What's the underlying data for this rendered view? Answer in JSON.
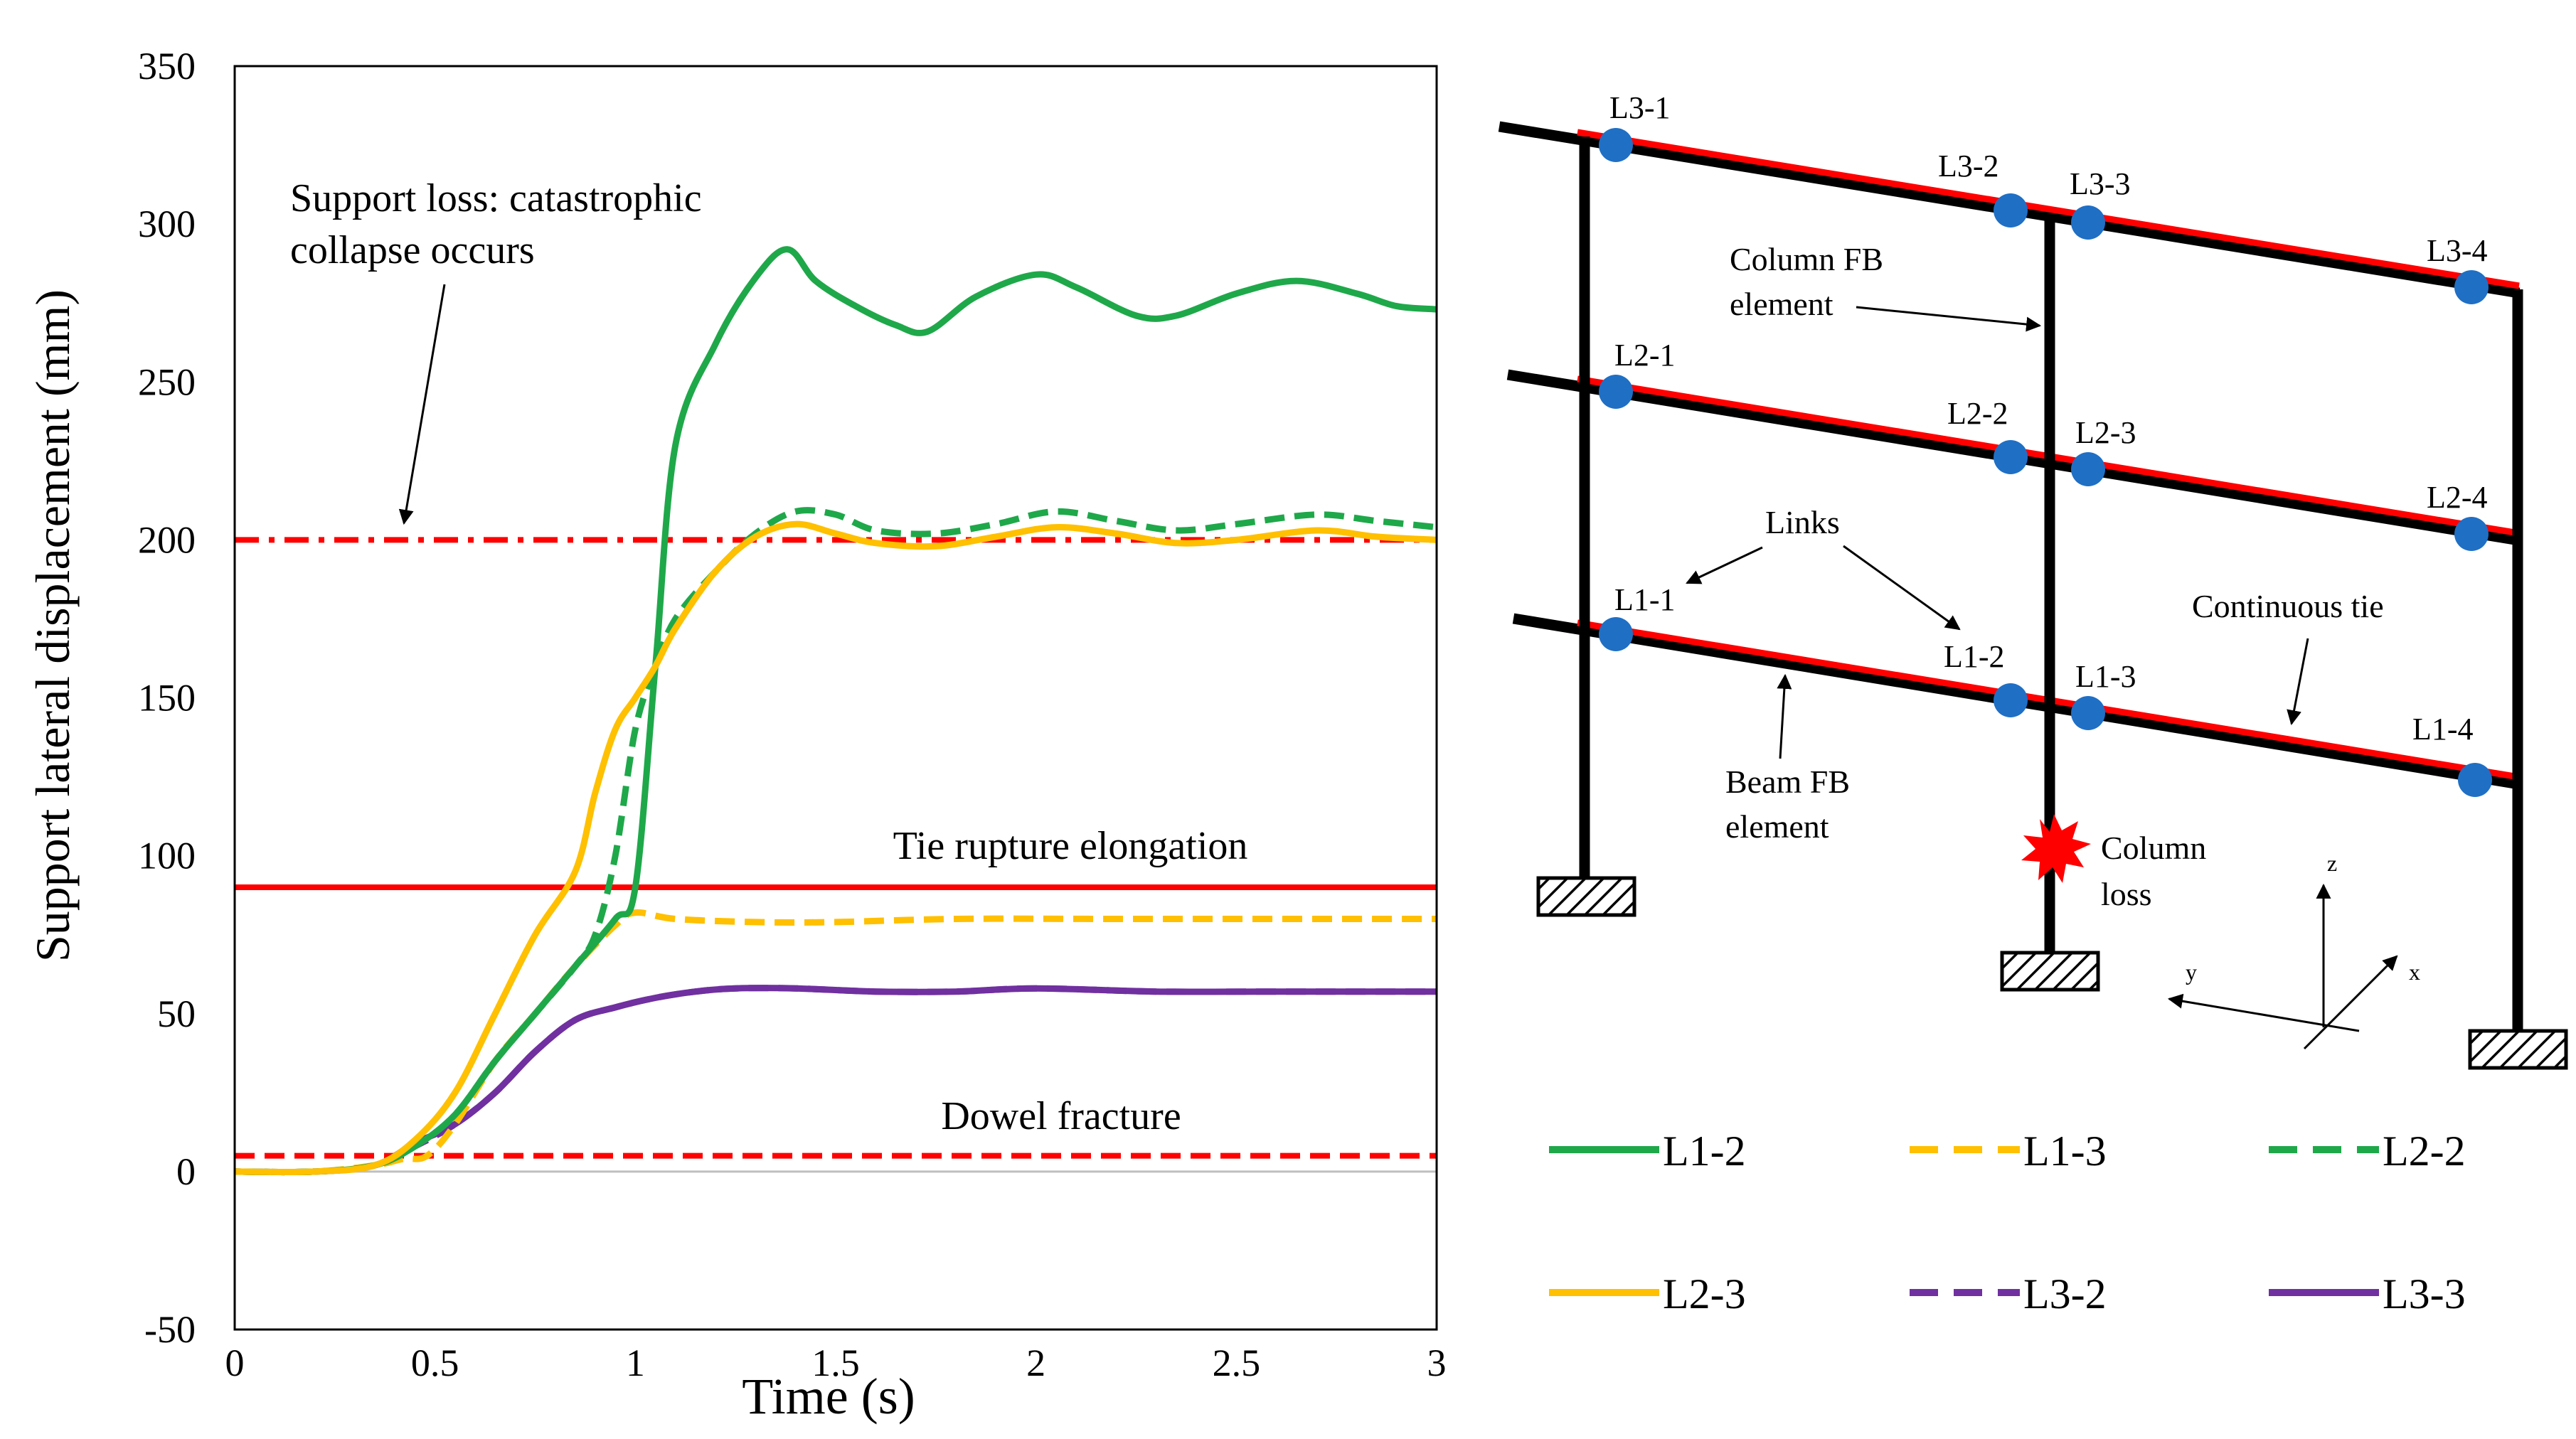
{
  "colors": {
    "green": "#1FA84A",
    "yellow": "#FFC000",
    "purple": "#7030A0",
    "red": "#FF0000",
    "blue": "#1F6FC5",
    "black": "#000000"
  },
  "chart_data": {
    "type": "line",
    "xlabel": "Time (s)",
    "ylabel": "Support lateral displacement (mm)",
    "xlim": [
      0,
      3
    ],
    "ylim": [
      -50,
      350
    ],
    "xticks": [
      0,
      0.5,
      1,
      1.5,
      2,
      2.5,
      3
    ],
    "xtick_labels": [
      "0",
      "0.5",
      "1",
      "1.5",
      "2",
      "2.5",
      "3"
    ],
    "yticks": [
      -50,
      0,
      50,
      100,
      150,
      200,
      250,
      300,
      350
    ],
    "ytick_labels": [
      "-50",
      "0",
      "50",
      "100",
      "150",
      "200",
      "250",
      "300",
      "350"
    ],
    "reference_lines": [
      {
        "name": "support-loss",
        "label": "Support loss: catastrophic collapse occurs",
        "y": 200,
        "style": "dashdot",
        "color": "#FF0000"
      },
      {
        "name": "tie-rupture",
        "label": "Tie rupture elongation",
        "y": 90,
        "style": "solid",
        "color": "#FF0000"
      },
      {
        "name": "dowel-fracture",
        "label": "Dowel fracture",
        "y": 5,
        "style": "dashed",
        "color": "#FF0000"
      }
    ],
    "annotations": {
      "support_loss_line1": "Support loss: catastrophic",
      "support_loss_line2": "collapse occurs",
      "tie_rupture": "Tie rupture elongation",
      "dowel": "Dowel fracture"
    },
    "series": [
      {
        "name": "L1-2",
        "style": "solid",
        "color": "#1FA84A",
        "x": [
          0,
          0.2,
          0.35,
          0.45,
          0.55,
          0.65,
          0.75,
          0.85,
          0.95,
          1.0,
          1.05,
          1.1,
          1.2,
          1.3,
          1.38,
          1.45,
          1.55,
          1.65,
          1.73,
          1.85,
          2.0,
          2.1,
          2.25,
          2.35,
          2.5,
          2.65,
          2.8,
          2.9,
          3.0
        ],
        "y": [
          0,
          0,
          2,
          8,
          18,
          35,
          50,
          65,
          80,
          90,
          160,
          230,
          262,
          283,
          292,
          282,
          274,
          268,
          266,
          277,
          284,
          280,
          271,
          271,
          278,
          282,
          278,
          274,
          273
        ]
      },
      {
        "name": "L1-3",
        "style": "dashed",
        "color": "#FFC000",
        "x": [
          0,
          0.2,
          0.35,
          0.42,
          0.48,
          0.55,
          0.65,
          0.75,
          0.85,
          0.95,
          1.0,
          1.1,
          1.3,
          1.5,
          1.8,
          2.2,
          2.6,
          3.0
        ],
        "y": [
          0,
          0,
          2,
          4,
          5,
          15,
          35,
          50,
          65,
          78,
          82,
          80,
          79,
          79,
          80,
          80,
          80,
          80
        ]
      },
      {
        "name": "L2-2",
        "style": "dashed",
        "color": "#1FA84A",
        "x": [
          0,
          0.2,
          0.35,
          0.45,
          0.55,
          0.65,
          0.75,
          0.85,
          0.9,
          0.95,
          1.0,
          1.05,
          1.1,
          1.2,
          1.3,
          1.4,
          1.5,
          1.6,
          1.75,
          1.9,
          2.05,
          2.2,
          2.35,
          2.5,
          2.7,
          2.85,
          3.0
        ],
        "y": [
          0,
          0,
          2,
          8,
          18,
          35,
          50,
          65,
          75,
          100,
          140,
          160,
          175,
          190,
          202,
          209,
          208,
          203,
          202,
          205,
          209,
          206,
          203,
          205,
          208,
          206,
          204
        ]
      },
      {
        "name": "L2-3",
        "style": "solid",
        "color": "#FFC000",
        "x": [
          0,
          0.2,
          0.35,
          0.45,
          0.55,
          0.65,
          0.75,
          0.85,
          0.9,
          0.95,
          1.0,
          1.05,
          1.1,
          1.2,
          1.3,
          1.4,
          1.5,
          1.6,
          1.75,
          1.9,
          2.05,
          2.2,
          2.35,
          2.5,
          2.7,
          2.85,
          3.0
        ],
        "y": [
          0,
          0,
          2,
          10,
          25,
          50,
          75,
          95,
          120,
          140,
          150,
          160,
          172,
          190,
          201,
          205,
          202,
          199,
          198,
          201,
          204,
          202,
          199,
          200,
          203,
          201,
          200
        ]
      },
      {
        "name": "L3-2",
        "style": "dashed",
        "color": "#7030A0",
        "x": [
          0,
          0.2,
          0.35,
          0.45,
          0.55,
          0.65,
          0.75,
          0.85,
          0.95,
          1.05,
          1.15,
          1.25,
          1.4,
          1.6,
          1.8,
          2.0,
          2.3,
          2.6,
          3.0
        ],
        "y": [
          0,
          0,
          2,
          8,
          15,
          25,
          38,
          48,
          52,
          55,
          57,
          58,
          58,
          57,
          57,
          58,
          57,
          57,
          57
        ]
      },
      {
        "name": "L3-3",
        "style": "solid",
        "color": "#7030A0",
        "x": [
          0,
          0.2,
          0.35,
          0.45,
          0.55,
          0.65,
          0.75,
          0.85,
          0.95,
          1.05,
          1.15,
          1.25,
          1.4,
          1.6,
          1.8,
          2.0,
          2.3,
          2.6,
          3.0
        ],
        "y": [
          0,
          0,
          2,
          9,
          15,
          25,
          38,
          48,
          52,
          55,
          57,
          58,
          58,
          57,
          57,
          58,
          57,
          57,
          57
        ]
      }
    ]
  },
  "diagram": {
    "node_labels": [
      "L3-1",
      "L3-2",
      "L3-3",
      "L3-4",
      "L2-1",
      "L2-2",
      "L2-3",
      "L2-4",
      "L1-1",
      "L1-2",
      "L1-3",
      "L1-4"
    ],
    "column_fb_line1": "Column FB",
    "column_fb_line2": "element",
    "links": "Links",
    "continuous_tie": "Continuous tie",
    "beam_fb_line1": "Beam FB",
    "beam_fb_line2": "element",
    "column_loss_line1": "Column",
    "column_loss_line2": "loss",
    "axis_z": "z",
    "axis_y": "y",
    "axis_x": "x"
  }
}
